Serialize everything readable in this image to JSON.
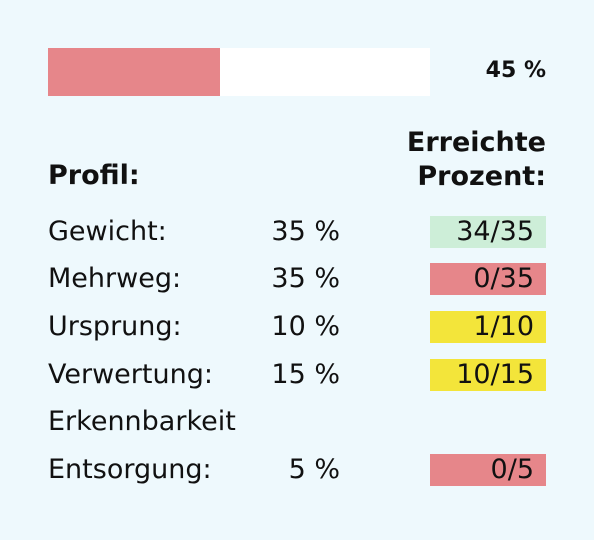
{
  "progress": {
    "value": 0.45,
    "label": "45 %",
    "fill_color": "#e6868a",
    "track_color": "#ffffff"
  },
  "headers": {
    "profile": "Profil:",
    "result_line1": "Erreichte",
    "result_line2": "Prozent:"
  },
  "colors": {
    "background": "#eef9fd",
    "good": "#cdeed8",
    "bad": "#e6868a",
    "medium": "#f3e53a"
  },
  "rows": [
    {
      "label": "Gewicht:",
      "weight": "35 %",
      "score": "34/35",
      "status": "good"
    },
    {
      "label": "Mehrweg:",
      "weight": "35 %",
      "score": "0/35",
      "status": "bad"
    },
    {
      "label": "Ursprung:",
      "weight": "10 %",
      "score": "1/10",
      "status": "medium"
    },
    {
      "label": "Verwertung:",
      "weight": "15 %",
      "score": "10/15",
      "status": "medium"
    },
    {
      "label_line1": "Erkennbarkeit",
      "label": "Entsorgung:",
      "weight": "5 %",
      "score": "0/5",
      "status": "bad"
    }
  ]
}
